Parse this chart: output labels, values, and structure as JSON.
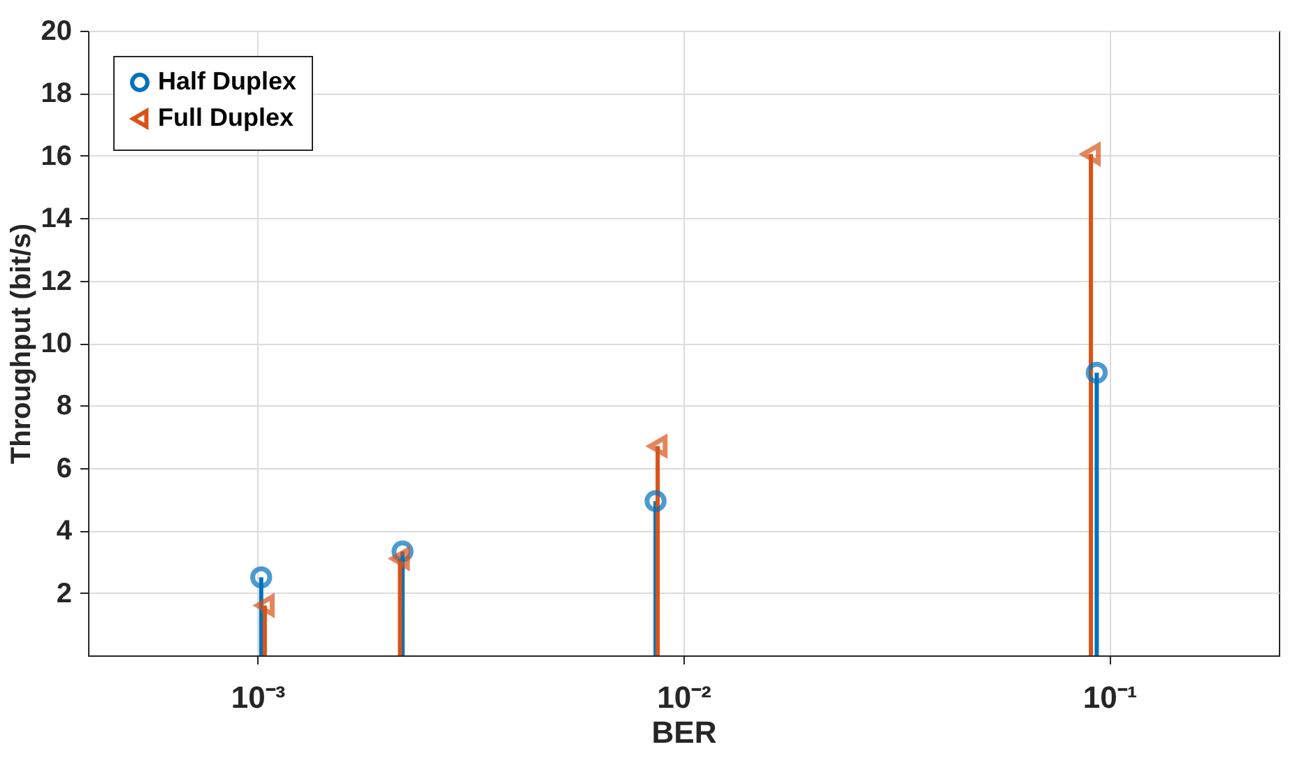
{
  "chart_data": {
    "type": "lollipop",
    "xlabel": "BER",
    "ylabel": "Throughput (bit/s)",
    "log": "x",
    "grid": true,
    "legend": "top left",
    "xlim": [
      0.0004,
      0.25
    ],
    "xticks": [
      {
        "value": 0.001,
        "label": "10⁻³"
      },
      {
        "value": 0.01,
        "label": "10⁻²"
      },
      {
        "value": 0.1,
        "label": "10⁻¹"
      }
    ],
    "ylim": [
      0,
      20
    ],
    "yticks": [
      2,
      4,
      6,
      8,
      10,
      12,
      14,
      16,
      18,
      20
    ],
    "series": [
      {
        "name": "Half Duplex",
        "color": "#0072bd",
        "marker": "circle",
        "x": [
          0.00102,
          0.00219,
          0.0086,
          0.0934
        ],
        "values": [
          2.5,
          3.33,
          4.94,
          9.05
        ]
      },
      {
        "name": "Full Duplex",
        "color": "#d95319",
        "marker": "triangle",
        "x": [
          0.00104,
          0.00216,
          0.0087,
          0.0905
        ],
        "values": [
          1.6,
          3.1,
          6.7,
          16.05
        ]
      }
    ]
  }
}
